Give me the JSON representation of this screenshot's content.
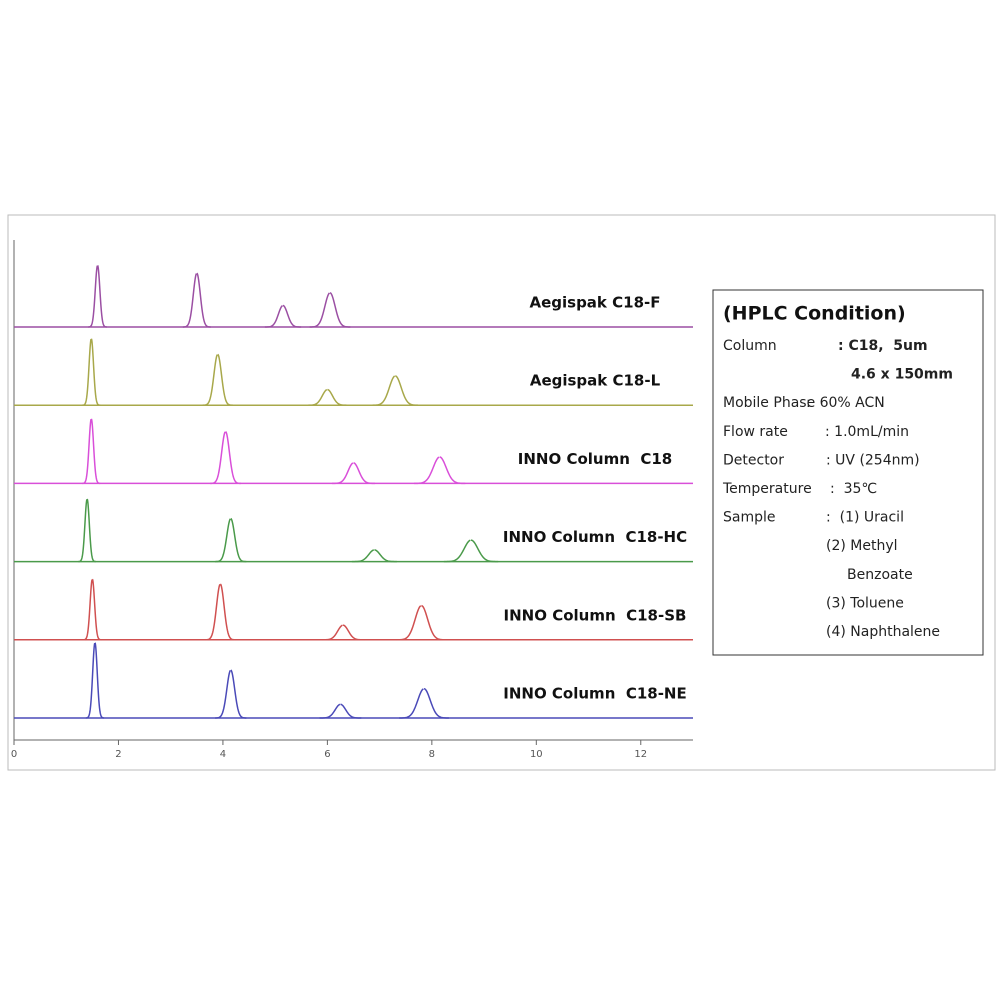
{
  "chart_data": {
    "type": "chromatogram",
    "xlim": [
      0,
      13
    ],
    "xticks": [
      0,
      2,
      4,
      6,
      8,
      10,
      12
    ],
    "ylim": [
      0,
      80
    ],
    "series": [
      {
        "name": "Aegispak C18-F",
        "color": "#9b4fa3",
        "x": [
          1.6,
          3.5,
          5.15,
          6.05
        ],
        "values": [
          63,
          55,
          22,
          35
        ]
      },
      {
        "name": "Aegispak C18-L",
        "color": "#a8a84a",
        "x": [
          1.48,
          3.9,
          6.0,
          7.3
        ],
        "values": [
          68,
          52,
          16,
          30
        ]
      },
      {
        "name": "INNO Column  C18",
        "color": "#d94fd9",
        "x": [
          1.48,
          4.05,
          6.5,
          8.15
        ],
        "values": [
          66,
          53,
          21,
          27
        ]
      },
      {
        "name": "INNO Column  C18-HC",
        "color": "#4a9a4a",
        "x": [
          1.4,
          4.15,
          6.9,
          8.75
        ],
        "values": [
          64,
          44,
          12,
          22
        ]
      },
      {
        "name": "INNO Column  C18-SB",
        "color": "#d05050",
        "x": [
          1.5,
          3.95,
          6.3,
          7.8
        ],
        "values": [
          62,
          57,
          15,
          35
        ]
      },
      {
        "name": "INNO Column  C18-NE",
        "color": "#4a4ab8",
        "x": [
          1.55,
          4.15,
          6.25,
          7.85
        ],
        "values": [
          77,
          49,
          14,
          30
        ]
      }
    ]
  },
  "panel": {
    "title": "(HPLC Condition)",
    "rows": [
      {
        "label": "Column",
        "lines": [
          ": C18,  5um",
          "4.6 x 150mm"
        ]
      },
      {
        "label": "Mobile Phase",
        "lines": [
          ":  60% ACN"
        ]
      },
      {
        "label": "Flow rate",
        "lines": [
          ": 1.0mL/min"
        ]
      },
      {
        "label": "Detector",
        "lines": [
          ": UV (254nm)"
        ]
      },
      {
        "label": "Temperature",
        "lines": [
          ":  35℃"
        ]
      },
      {
        "label": "Sample",
        "lines": [
          ":  (1) Uracil",
          "(2) Methyl",
          "Benzoate",
          "(3) Toluene",
          "(4) Naphthalene"
        ]
      }
    ]
  }
}
